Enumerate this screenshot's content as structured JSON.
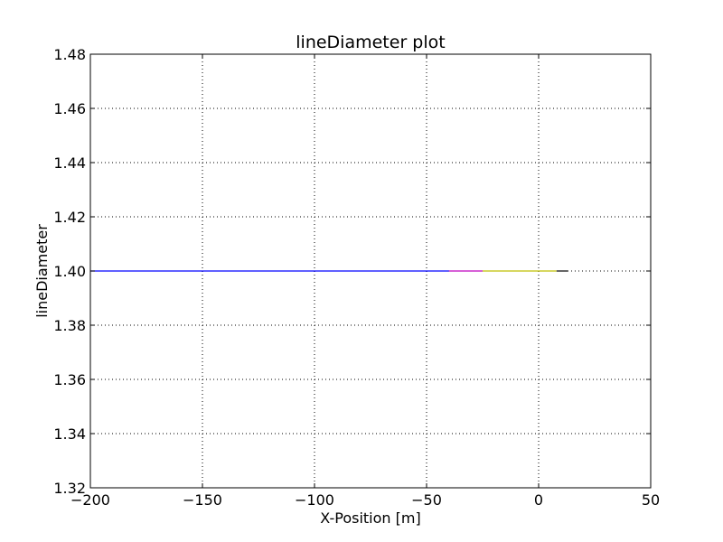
{
  "chart_data": {
    "type": "line",
    "title": "lineDiameter plot",
    "xlabel": "X-Position [m]",
    "ylabel": "lineDiameter",
    "xlim": [
      -200,
      50
    ],
    "ylim": [
      1.32,
      1.48
    ],
    "xticks": [
      -200,
      -150,
      -100,
      -50,
      0,
      50
    ],
    "xtick_labels": [
      "−200",
      "−150",
      "−100",
      "−50",
      "0",
      "50"
    ],
    "yticks": [
      1.32,
      1.34,
      1.36,
      1.38,
      1.4,
      1.42,
      1.44,
      1.46,
      1.48
    ],
    "ytick_labels": [
      "1.32",
      "1.34",
      "1.36",
      "1.38",
      "1.40",
      "1.42",
      "1.44",
      "1.46",
      "1.48"
    ],
    "grid": true,
    "grid_style": "dotted",
    "series": [
      {
        "color": "#0000ff",
        "x": [
          -200,
          -40
        ],
        "y": [
          1.4,
          1.4
        ]
      },
      {
        "color": "#bf00bf",
        "x": [
          -40,
          -25
        ],
        "y": [
          1.4,
          1.4
        ]
      },
      {
        "color": "#bfbf00",
        "x": [
          -25,
          8
        ],
        "y": [
          1.4,
          1.4
        ]
      },
      {
        "color": "#000000",
        "x": [
          8,
          13
        ],
        "y": [
          1.4,
          1.4
        ]
      }
    ]
  }
}
